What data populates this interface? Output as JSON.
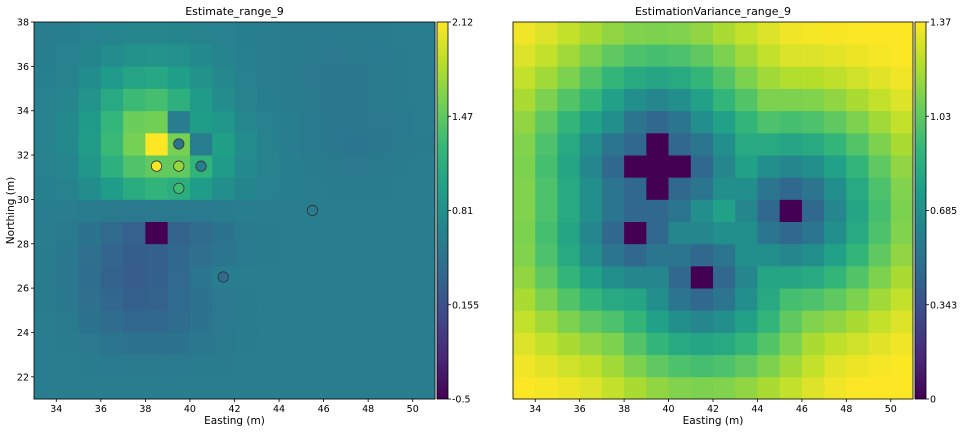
{
  "chart_data": [
    {
      "type": "heatmap",
      "title": "Estimate_range_9",
      "xlabel": "Easting (m)",
      "ylabel": "Northing (m)",
      "xlim": [
        33,
        51
      ],
      "ylim": [
        21,
        38
      ],
      "x_ticks": [
        "34",
        "36",
        "38",
        "40",
        "42",
        "44",
        "46",
        "48",
        "50"
      ],
      "y_ticks": [
        "22",
        "24",
        "26",
        "28",
        "30",
        "32",
        "34",
        "36",
        "38"
      ],
      "x_origin": 33,
      "y_origin": 21,
      "cell_size": 1,
      "color_range": [
        -0.5,
        2.12
      ],
      "colorbar_ticks": [
        "-0.5",
        "0.155",
        "0.81",
        "1.47",
        "2.12"
      ],
      "grid": false,
      "values": [
        [
          0.62,
          0.62,
          0.62,
          0.61,
          0.61,
          0.61,
          0.62,
          0.62,
          0.62,
          0.62,
          0.62,
          0.62,
          0.62,
          0.62,
          0.62,
          0.62,
          0.62,
          0.62
        ],
        [
          0.62,
          0.61,
          0.6,
          0.58,
          0.57,
          0.57,
          0.58,
          0.59,
          0.6,
          0.61,
          0.61,
          0.62,
          0.62,
          0.62,
          0.62,
          0.62,
          0.62,
          0.62
        ],
        [
          0.62,
          0.6,
          0.56,
          0.52,
          0.49,
          0.49,
          0.51,
          0.54,
          0.57,
          0.6,
          0.61,
          0.62,
          0.62,
          0.62,
          0.62,
          0.62,
          0.62,
          0.62
        ],
        [
          0.61,
          0.57,
          0.5,
          0.42,
          0.38,
          0.38,
          0.43,
          0.5,
          0.56,
          0.59,
          0.61,
          0.62,
          0.62,
          0.62,
          0.62,
          0.62,
          0.62,
          0.62
        ],
        [
          0.6,
          0.55,
          0.46,
          0.36,
          0.3,
          0.32,
          0.4,
          0.49,
          0.56,
          0.6,
          0.61,
          0.62,
          0.62,
          0.62,
          0.62,
          0.62,
          0.62,
          0.62
        ],
        [
          0.6,
          0.54,
          0.44,
          0.33,
          0.27,
          0.3,
          0.4,
          0.52,
          0.62,
          0.62,
          0.62,
          0.62,
          0.62,
          0.62,
          0.62,
          0.62,
          0.62,
          0.62
        ],
        [
          0.6,
          0.55,
          0.46,
          0.35,
          0.28,
          0.3,
          0.38,
          0.46,
          0.53,
          0.58,
          0.6,
          0.61,
          0.62,
          0.62,
          0.62,
          0.62,
          0.62,
          0.62
        ],
        [
          0.61,
          0.57,
          0.5,
          0.41,
          0.31,
          -0.5,
          0.33,
          0.42,
          0.51,
          0.57,
          0.6,
          0.61,
          0.62,
          0.62,
          0.62,
          0.62,
          0.62,
          0.62
        ],
        [
          0.62,
          0.61,
          0.59,
          0.57,
          0.56,
          0.56,
          0.57,
          0.58,
          0.6,
          0.61,
          0.61,
          0.62,
          0.62,
          0.62,
          0.62,
          0.62,
          0.62,
          0.62
        ],
        [
          0.64,
          0.68,
          0.78,
          0.94,
          1.12,
          1.2,
          1.13,
          0.95,
          0.8,
          0.7,
          0.65,
          0.63,
          0.62,
          0.6,
          0.6,
          0.6,
          0.61,
          0.62
        ],
        [
          0.65,
          0.72,
          0.88,
          1.15,
          1.38,
          1.48,
          1.47,
          1.2,
          0.92,
          0.75,
          0.67,
          0.63,
          0.6,
          0.57,
          0.56,
          0.57,
          0.59,
          0.61
        ],
        [
          0.66,
          0.74,
          0.93,
          1.27,
          1.57,
          2.12,
          1.57,
          0.62,
          0.98,
          0.77,
          0.67,
          0.62,
          0.58,
          0.55,
          0.53,
          0.55,
          0.57,
          0.6
        ],
        [
          0.66,
          0.74,
          0.92,
          1.23,
          1.52,
          1.55,
          0.62,
          0.95,
          0.88,
          0.73,
          0.65,
          0.61,
          0.58,
          0.55,
          0.54,
          0.56,
          0.58,
          0.61
        ],
        [
          0.65,
          0.71,
          0.85,
          1.07,
          1.28,
          1.33,
          1.15,
          0.92,
          0.77,
          0.68,
          0.63,
          0.6,
          0.57,
          0.54,
          0.55,
          0.57,
          0.59,
          0.61
        ],
        [
          0.64,
          0.68,
          0.77,
          0.91,
          1.03,
          1.06,
          0.97,
          0.84,
          0.73,
          0.66,
          0.62,
          0.59,
          0.56,
          0.54,
          0.55,
          0.57,
          0.59,
          0.61
        ],
        [
          0.63,
          0.65,
          0.7,
          0.77,
          0.83,
          0.85,
          0.81,
          0.75,
          0.69,
          0.64,
          0.61,
          0.59,
          0.57,
          0.56,
          0.57,
          0.58,
          0.6,
          0.61
        ],
        [
          0.62,
          0.63,
          0.66,
          0.69,
          0.71,
          0.72,
          0.7,
          0.68,
          0.65,
          0.63,
          0.61,
          0.6,
          0.59,
          0.59,
          0.59,
          0.6,
          0.61,
          0.62
        ]
      ],
      "samples": [
        {
          "x": 38.5,
          "y": 31.5,
          "value": 2.1
        },
        {
          "x": 39.5,
          "y": 32.5,
          "value": 0.5
        },
        {
          "x": 39.5,
          "y": 31.5,
          "value": 1.7
        },
        {
          "x": 39.5,
          "y": 30.5,
          "value": 1.3
        },
        {
          "x": 40.5,
          "y": 31.5,
          "value": 0.6
        },
        {
          "x": 45.5,
          "y": 29.5,
          "value": 0.6
        },
        {
          "x": 41.5,
          "y": 26.5,
          "value": 0.4
        },
        {
          "x": 38.5,
          "y": 28.5,
          "value": -0.5
        }
      ],
      "colormap": [
        "#440154",
        "#482878",
        "#3e4989",
        "#31688e",
        "#26828e",
        "#1f9e89",
        "#35b779",
        "#6ece58",
        "#b5de2b",
        "#fde725"
      ]
    },
    {
      "type": "heatmap",
      "title": "EstimationVariance_range_9",
      "xlabel": "Easting (m)",
      "ylabel": "",
      "xlim": [
        33,
        51
      ],
      "ylim": [
        21,
        38
      ],
      "x_ticks": [
        "34",
        "36",
        "38",
        "40",
        "42",
        "44",
        "46",
        "48",
        "50"
      ],
      "y_ticks": [],
      "x_origin": 33,
      "y_origin": 21,
      "cell_size": 1,
      "color_range": [
        0,
        1.37
      ],
      "colorbar_ticks": [
        "0",
        "0.343",
        "0.685",
        "1.03",
        "1.37"
      ],
      "grid": false,
      "samples": [
        {
          "x": 38.5,
          "y": 31.5
        },
        {
          "x": 39.5,
          "y": 32.5
        },
        {
          "x": 39.5,
          "y": 31.5
        },
        {
          "x": 39.5,
          "y": 30.5
        },
        {
          "x": 40.5,
          "y": 31.5
        },
        {
          "x": 45.5,
          "y": 29.5
        },
        {
          "x": 41.5,
          "y": 26.5
        },
        {
          "x": 38.5,
          "y": 28.5
        }
      ],
      "colormap": [
        "#440154",
        "#482878",
        "#3e4989",
        "#31688e",
        "#26828e",
        "#1f9e89",
        "#35b779",
        "#6ece58",
        "#b5de2b",
        "#fde725"
      ]
    }
  ]
}
